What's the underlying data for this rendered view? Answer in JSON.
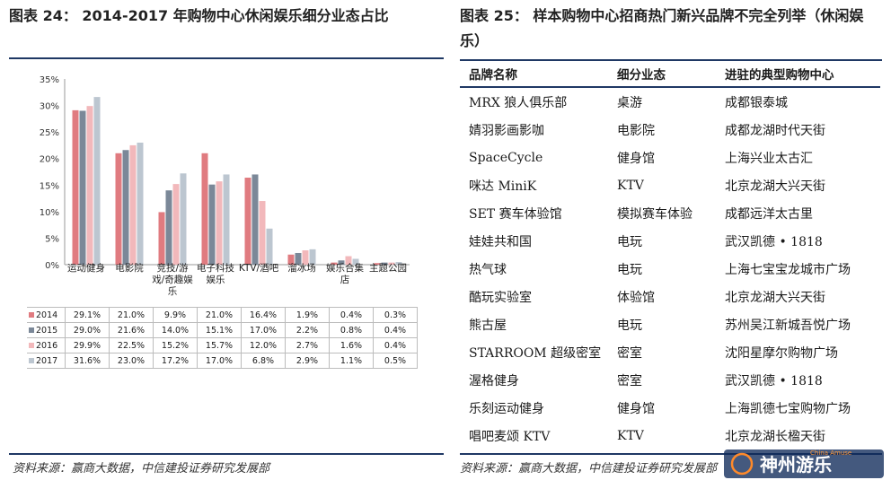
{
  "left": {
    "title": "图表 24：  2014-2017 年购物中心休闲娱乐细分业态占比",
    "note": "资料来源：赢商大数据，中信建投证券研究发展部"
  },
  "right": {
    "title": "图表 25：  样本购物中心招商热门新兴品牌不完全列举（休闲娱乐）",
    "note": "资料来源：赢商大数据，中信建投证券研究发展部",
    "headers": [
      "品牌名称",
      "细分业态",
      "进驻的典型购物中心"
    ],
    "rows": [
      [
        "MRX 狼人俱乐部",
        "桌游",
        "成都银泰城"
      ],
      [
        "婧羽影画影咖",
        "电影院",
        "成都龙湖时代天街"
      ],
      [
        "SpaceCycle",
        "健身馆",
        "上海兴业太古汇"
      ],
      [
        "咪达 MiniK",
        "KTV",
        "北京龙湖大兴天街"
      ],
      [
        "SET 赛车体验馆",
        "模拟赛车体验",
        "成都远洋太古里"
      ],
      [
        "娃娃共和国",
        "电玩",
        "武汉凯德 • 1818"
      ],
      [
        "热气球",
        "电玩",
        "上海七宝宝龙城市广场"
      ],
      [
        "酷玩实验室",
        "体验馆",
        "北京龙湖大兴天街"
      ],
      [
        "熊古屋",
        "电玩",
        "苏州吴江新城吾悦广场"
      ],
      [
        "STARROOM 超级密室",
        "密室",
        "沈阳星摩尔购物广场"
      ],
      [
        "渥格健身",
        "密室",
        "武汉凯德 • 1818"
      ],
      [
        "乐刻运动健身",
        "健身馆",
        "上海凯德七宝购物广场"
      ],
      [
        "唱吧麦颂 KTV",
        "KTV",
        "北京龙湖长楹天街"
      ]
    ]
  },
  "watermark": {
    "text": "神州游乐",
    "sub": "China Amuse"
  },
  "chart_data": {
    "type": "bar",
    "title": "",
    "xlabel": "",
    "ylabel": "",
    "ylim": [
      0,
      35
    ],
    "yticks": [
      "0%",
      "5%",
      "10%",
      "15%",
      "20%",
      "25%",
      "30%",
      "35%"
    ],
    "grid": false,
    "legend": "table-left",
    "categories": [
      "运动健身",
      "电影院",
      "竞技/游戏/奇趣娱乐",
      "电子科技娱乐",
      "KTV/酒吧",
      "溜冰场",
      "娱乐合集店",
      "主题公园"
    ],
    "series": [
      {
        "name": "2014",
        "color": "#e07b80",
        "values": [
          29.1,
          21.0,
          9.9,
          21.0,
          16.4,
          1.9,
          0.4,
          0.3
        ],
        "labels": [
          "29.1%",
          "21.0%",
          "9.9%",
          "21.0%",
          "16.4%",
          "1.9%",
          "0.4%",
          "0.3%"
        ]
      },
      {
        "name": "2015",
        "color": "#7b8898",
        "values": [
          29.0,
          21.6,
          14.0,
          15.1,
          17.0,
          2.2,
          0.8,
          0.4
        ],
        "labels": [
          "29.0%",
          "21.6%",
          "14.0%",
          "15.1%",
          "17.0%",
          "2.2%",
          "0.8%",
          "0.4%"
        ]
      },
      {
        "name": "2016",
        "color": "#f2b8bb",
        "values": [
          29.9,
          22.5,
          15.2,
          15.7,
          12.0,
          2.7,
          1.6,
          0.4
        ],
        "labels": [
          "29.9%",
          "22.5%",
          "15.2%",
          "15.7%",
          "12.0%",
          "2.7%",
          "1.6%",
          "0.4%"
        ]
      },
      {
        "name": "2017",
        "color": "#bcc6d0",
        "values": [
          31.6,
          23.0,
          17.2,
          17.0,
          6.8,
          2.9,
          1.1,
          0.5
        ],
        "labels": [
          "31.6%",
          "23.0%",
          "17.2%",
          "17.0%",
          "6.8%",
          "2.9%",
          "1.1%",
          "0.5%"
        ]
      }
    ]
  }
}
